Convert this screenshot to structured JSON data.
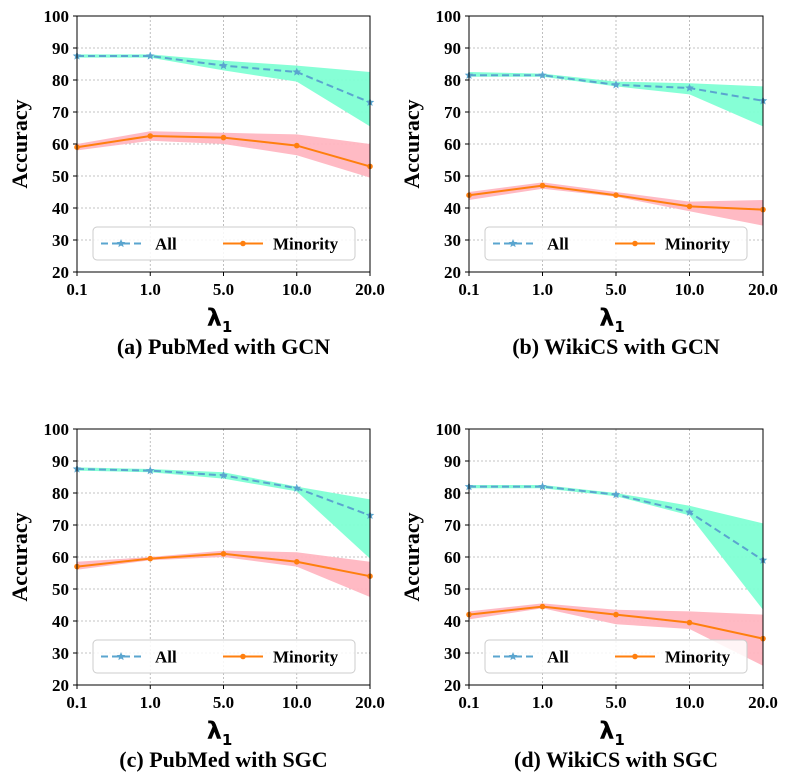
{
  "chart_data": [
    {
      "type": "line",
      "caption": "(a) PubMed with GCN",
      "categories": [
        "0.1",
        "1.0",
        "5.0",
        "10.0",
        "20.0"
      ],
      "ylabel": "Accuracy",
      "xlabel_main": "λ",
      "xlabel_sub": "1",
      "ylim": [
        20,
        100
      ],
      "yticks": [
        "20",
        "30",
        "40",
        "50",
        "60",
        "70",
        "80",
        "90",
        "100"
      ],
      "grid": true,
      "legend_position": "lower-center",
      "series": [
        {
          "name": "All",
          "values": [
            87.5,
            87.5,
            84.5,
            82.5,
            73
          ],
          "upper": [
            88,
            88,
            86,
            84.5,
            82.5
          ],
          "lower": [
            87,
            87,
            83,
            79.5,
            65.5
          ]
        },
        {
          "name": "Minority",
          "values": [
            59,
            62.5,
            62,
            59.5,
            53
          ],
          "upper": [
            60,
            64,
            63.5,
            63,
            60
          ],
          "lower": [
            58,
            61,
            60,
            56.5,
            49.5
          ]
        }
      ]
    },
    {
      "type": "line",
      "caption": "(b) WikiCS with GCN",
      "categories": [
        "0.1",
        "1.0",
        "5.0",
        "10.0",
        "20.0"
      ],
      "ylabel": "Accuracy",
      "xlabel_main": "λ",
      "xlabel_sub": "1",
      "ylim": [
        20,
        100
      ],
      "yticks": [
        "20",
        "30",
        "40",
        "50",
        "60",
        "70",
        "80",
        "90",
        "100"
      ],
      "grid": true,
      "legend_position": "lower-center",
      "series": [
        {
          "name": "All",
          "values": [
            81.5,
            81.5,
            78.5,
            77.5,
            73.5
          ],
          "upper": [
            82.5,
            82,
            79.5,
            79,
            78
          ],
          "lower": [
            81,
            81,
            78,
            75.5,
            65.5
          ]
        },
        {
          "name": "Minority",
          "values": [
            44,
            47,
            44,
            40.5,
            39.5
          ],
          "upper": [
            45,
            48,
            45,
            42,
            42.5
          ],
          "lower": [
            42.5,
            46,
            43.5,
            39,
            34.5
          ]
        }
      ]
    },
    {
      "type": "line",
      "caption": "(c) PubMed with SGC",
      "categories": [
        "0.1",
        "1.0",
        "5.0",
        "10.0",
        "20.0"
      ],
      "ylabel": "Accuracy",
      "xlabel_main": "λ",
      "xlabel_sub": "1",
      "ylim": [
        20,
        100
      ],
      "yticks": [
        "20",
        "30",
        "40",
        "50",
        "60",
        "70",
        "80",
        "90",
        "100"
      ],
      "grid": true,
      "legend_position": "lower-center",
      "series": [
        {
          "name": "All",
          "values": [
            87.5,
            87,
            85.5,
            81.5,
            73
          ],
          "upper": [
            88,
            87.5,
            86.5,
            82,
            78
          ],
          "lower": [
            87,
            86.5,
            84.5,
            80.5,
            59.5
          ]
        },
        {
          "name": "Minority",
          "values": [
            57,
            59.5,
            61,
            58.5,
            54
          ],
          "upper": [
            58.5,
            60,
            62,
            61.5,
            58.5
          ],
          "lower": [
            56,
            59,
            60,
            57,
            47.5
          ]
        }
      ]
    },
    {
      "type": "line",
      "caption": "(d) WikiCS with SGC",
      "categories": [
        "0.1",
        "1.0",
        "5.0",
        "10.0",
        "20.0"
      ],
      "ylabel": "Accuracy",
      "xlabel_main": "λ",
      "xlabel_sub": "1",
      "ylim": [
        20,
        100
      ],
      "yticks": [
        "20",
        "30",
        "40",
        "50",
        "60",
        "70",
        "80",
        "90",
        "100"
      ],
      "grid": true,
      "legend_position": "lower-center",
      "series": [
        {
          "name": "All",
          "values": [
            82,
            82,
            79.5,
            74,
            59
          ],
          "upper": [
            82.5,
            82.5,
            80,
            76,
            70.5
          ],
          "lower": [
            81.5,
            81.5,
            79,
            73,
            43.5
          ]
        },
        {
          "name": "Minority",
          "values": [
            42,
            44.5,
            42,
            39.5,
            34.5
          ],
          "upper": [
            43,
            45.5,
            43.5,
            43,
            42
          ],
          "lower": [
            40.5,
            44,
            39,
            37.5,
            26
          ]
        }
      ]
    }
  ],
  "colors": {
    "all_line": "#5aa5cf",
    "all_band": "#7fffd4",
    "minority_line": "#ff7f0e",
    "minority_band": "#ffb6c1",
    "grid": "#b0b0b0"
  }
}
